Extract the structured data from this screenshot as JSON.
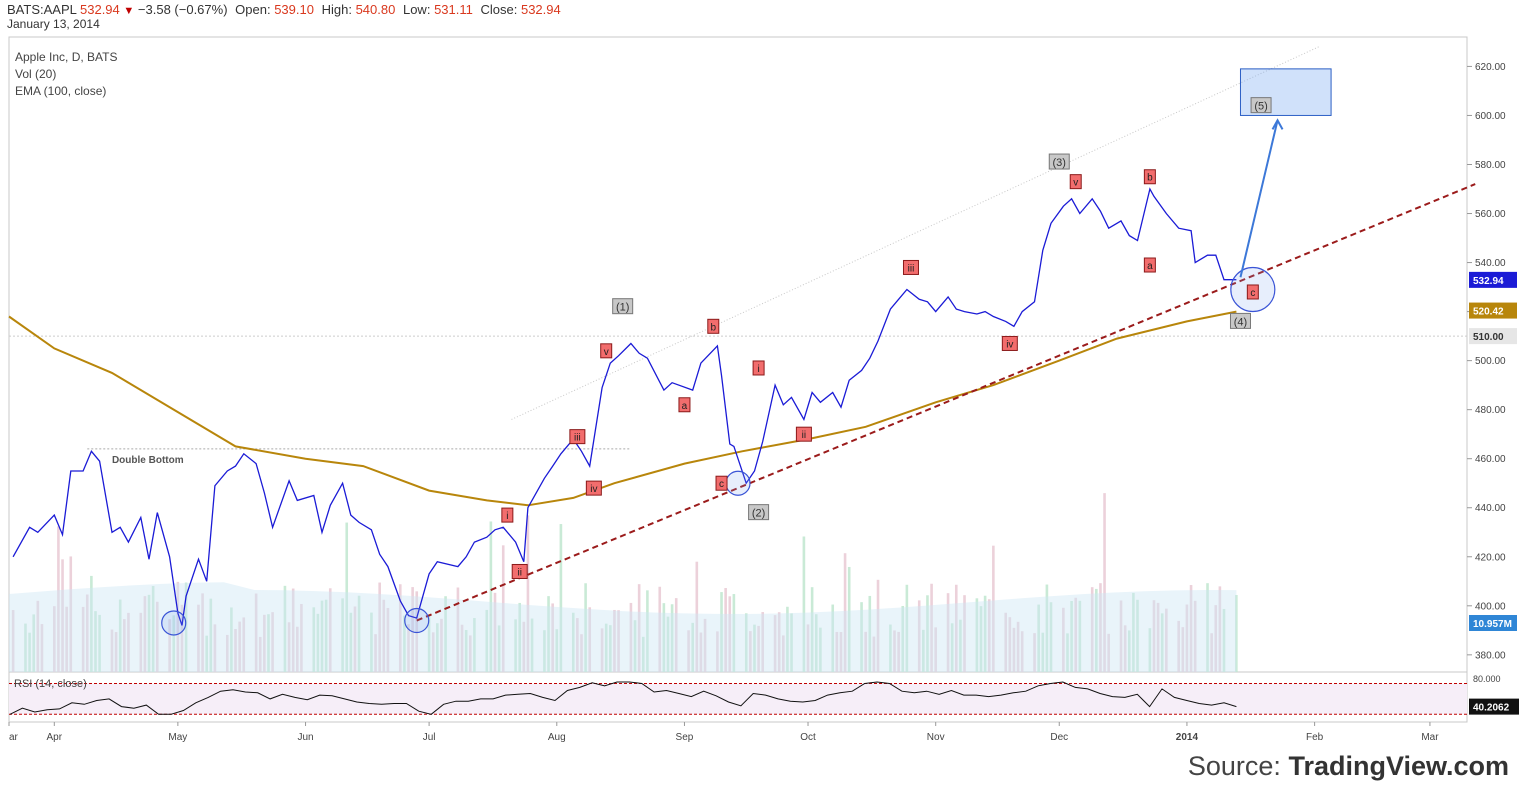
{
  "header": {
    "symbol": "BATS:AAPL",
    "last": "532.94",
    "change": "−3.58 (−0.67%)",
    "open_label": "Open:",
    "open": "539.10",
    "high_label": "High:",
    "high": "540.80",
    "low_label": "Low:",
    "low": "531.11",
    "close_label": "Close:",
    "close": "532.94",
    "date": "January 13, 2014"
  },
  "legend": {
    "title": "Apple Inc, D, BATS",
    "vol": "Vol (20)",
    "ema": "EMA (100, close)"
  },
  "source": {
    "prefix": "Source: ",
    "brand": "TradingView.com"
  },
  "colors": {
    "price": "#1b1bd6",
    "ema": "#b8860b",
    "trend": "#9b1b1b",
    "target": "#3c78d8",
    "vol_up": "#bfe6cf",
    "vol_dn": "#e9c9d3",
    "vol_avg": "#cfe6f5",
    "rsi": "#111111",
    "rsi_band": "#c00000"
  },
  "chart_data": [
    {
      "type": "line",
      "title": "Apple Inc, D, BATS",
      "y_axis": {
        "ticks": [
          "620.00",
          "600.00",
          "580.00",
          "560.00",
          "540.00",
          "520.00",
          "500.00",
          "480.00",
          "460.00",
          "440.00",
          "420.00",
          "400.00",
          "380.00"
        ],
        "values": [
          620,
          600,
          580,
          560,
          540,
          520,
          500,
          480,
          460,
          440,
          420,
          400,
          380
        ],
        "range": [
          373,
          632
        ]
      },
      "x_axis": {
        "labels": [
          "ar",
          "Apr",
          "May",
          "Jun",
          "Jul",
          "Aug",
          "Sep",
          "Oct",
          "Nov",
          "Dec",
          "2014",
          "Feb",
          "Mar"
        ],
        "range": [
          "2013-03-21",
          "2014-03-10"
        ]
      },
      "series": [
        {
          "name": "",
          "color": "#1b1bd6",
          "points": [
            [
              "2013-03-22",
              420
            ],
            [
              "2013-03-26",
              432
            ],
            [
              "2013-03-28",
              430
            ],
            [
              "2013-04-01",
              437
            ],
            [
              "2013-04-03",
              429
            ],
            [
              "2013-04-05",
              455
            ],
            [
              "2013-04-08",
              455
            ],
            [
              "2013-04-10",
              463
            ],
            [
              "2013-04-12",
              459
            ],
            [
              "2013-04-15",
              430
            ],
            [
              "2013-04-17",
              432
            ],
            [
              "2013-04-19",
              426
            ],
            [
              "2013-04-22",
              436
            ],
            [
              "2013-04-24",
              419
            ],
            [
              "2013-04-26",
              438
            ],
            [
              "2013-04-29",
              420
            ],
            [
              "2013-05-01",
              397
            ],
            [
              "2013-05-02",
              392
            ],
            [
              "2013-05-03",
              404
            ],
            [
              "2013-05-06",
              419
            ],
            [
              "2013-05-08",
              410
            ],
            [
              "2013-05-10",
              449
            ],
            [
              "2013-05-13",
              455
            ],
            [
              "2013-05-15",
              457
            ],
            [
              "2013-05-17",
              462
            ],
            [
              "2013-05-20",
              458
            ],
            [
              "2013-05-22",
              446
            ],
            [
              "2013-05-24",
              432
            ],
            [
              "2013-05-28",
              451
            ],
            [
              "2013-05-30",
              443
            ],
            [
              "2013-06-03",
              445
            ],
            [
              "2013-06-05",
              430
            ],
            [
              "2013-06-07",
              441
            ],
            [
              "2013-06-10",
              450
            ],
            [
              "2013-06-12",
              437
            ],
            [
              "2013-06-14",
              434
            ],
            [
              "2013-06-17",
              431
            ],
            [
              "2013-06-19",
              421
            ],
            [
              "2013-06-21",
              416
            ],
            [
              "2013-06-24",
              402
            ],
            [
              "2013-06-26",
              396
            ],
            [
              "2013-06-28",
              395
            ],
            [
              "2013-07-01",
              413
            ],
            [
              "2013-07-03",
              418
            ],
            [
              "2013-07-08",
              416
            ],
            [
              "2013-07-10",
              420
            ],
            [
              "2013-07-12",
              426
            ],
            [
              "2013-07-15",
              428
            ],
            [
              "2013-07-17",
              431
            ],
            [
              "2013-07-19",
              432
            ],
            [
              "2013-07-22",
              426
            ],
            [
              "2013-07-24",
              418
            ],
            [
              "2013-07-25",
              440
            ],
            [
              "2013-07-29",
              452
            ],
            [
              "2013-07-31",
              457
            ],
            [
              "2013-08-02",
              462
            ],
            [
              "2013-08-05",
              468
            ],
            [
              "2013-08-07",
              463
            ],
            [
              "2013-08-09",
              457
            ],
            [
              "2013-08-12",
              489
            ],
            [
              "2013-08-14",
              499
            ],
            [
              "2013-08-16",
              502
            ],
            [
              "2013-08-19",
              507
            ],
            [
              "2013-08-21",
              503
            ],
            [
              "2013-08-23",
              501
            ],
            [
              "2013-08-27",
              488
            ],
            [
              "2013-08-29",
              491
            ],
            [
              "2013-09-03",
              488
            ],
            [
              "2013-09-05",
              499
            ],
            [
              "2013-09-09",
              506
            ],
            [
              "2013-09-10",
              494
            ],
            [
              "2013-09-12",
              466
            ],
            [
              "2013-09-13",
              465
            ],
            [
              "2013-09-16",
              450
            ],
            [
              "2013-09-18",
              455
            ],
            [
              "2013-09-20",
              467
            ],
            [
              "2013-09-23",
              490
            ],
            [
              "2013-09-25",
              482
            ],
            [
              "2013-09-27",
              485
            ],
            [
              "2013-09-30",
              476
            ],
            [
              "2013-10-02",
              487
            ],
            [
              "2013-10-04",
              483
            ],
            [
              "2013-10-07",
              487
            ],
            [
              "2013-10-09",
              481
            ],
            [
              "2013-10-11",
              492
            ],
            [
              "2013-10-14",
              496
            ],
            [
              "2013-10-16",
              501
            ],
            [
              "2013-10-18",
              508
            ],
            [
              "2013-10-21",
              521
            ],
            [
              "2013-10-23",
              525
            ],
            [
              "2013-10-25",
              529
            ],
            [
              "2013-10-28",
              525
            ],
            [
              "2013-10-30",
              524
            ],
            [
              "2013-11-01",
              520
            ],
            [
              "2013-11-04",
              526
            ],
            [
              "2013-11-06",
              521
            ],
            [
              "2013-11-08",
              520
            ],
            [
              "2013-11-11",
              519
            ],
            [
              "2013-11-13",
              520
            ],
            [
              "2013-11-15",
              518
            ],
            [
              "2013-11-18",
              516
            ],
            [
              "2013-11-20",
              514
            ],
            [
              "2013-11-22",
              520
            ],
            [
              "2013-11-25",
              524
            ],
            [
              "2013-11-27",
              545
            ],
            [
              "2013-11-29",
              556
            ],
            [
              "2013-12-02",
              563
            ],
            [
              "2013-12-04",
              566
            ],
            [
              "2013-12-06",
              560
            ],
            [
              "2013-12-09",
              566
            ],
            [
              "2013-12-11",
              561
            ],
            [
              "2013-12-13",
              554
            ],
            [
              "2013-12-16",
              557
            ],
            [
              "2013-12-18",
              551
            ],
            [
              "2013-12-20",
              549
            ],
            [
              "2013-12-23",
              570
            ],
            [
              "2013-12-24",
              567
            ],
            [
              "2013-12-27",
              560
            ],
            [
              "2013-12-30",
              554
            ],
            [
              "2014-01-02",
              553
            ],
            [
              "2014-01-03",
              540
            ],
            [
              "2014-01-06",
              543
            ],
            [
              "2014-01-08",
              543
            ],
            [
              "2014-01-10",
              533
            ],
            [
              "2014-01-13",
              533
            ]
          ]
        },
        {
          "name": "",
          "color": "#b8860b",
          "points": [
            [
              "2013-03-21",
              518
            ],
            [
              "2013-04-01",
              505
            ],
            [
              "2013-04-15",
              495
            ],
            [
              "2013-05-01",
              479
            ],
            [
              "2013-05-15",
              465
            ],
            [
              "2013-06-01",
              460
            ],
            [
              "2013-06-15",
              457
            ],
            [
              "2013-07-01",
              447
            ],
            [
              "2013-07-15",
              443
            ],
            [
              "2013-07-25",
              441
            ],
            [
              "2013-08-05",
              444
            ],
            [
              "2013-08-15",
              450
            ],
            [
              "2013-09-01",
              458
            ],
            [
              "2013-09-15",
              463
            ],
            [
              "2013-10-01",
              468
            ],
            [
              "2013-10-15",
              473
            ],
            [
              "2013-11-01",
              483
            ],
            [
              "2013-11-15",
              490
            ],
            [
              "2013-12-01",
              500
            ],
            [
              "2013-12-15",
              509
            ],
            [
              "2014-01-01",
              516
            ],
            [
              "2014-01-13",
              520
            ]
          ]
        }
      ],
      "last_price_label": "532.94",
      "ema_label": "520.42",
      "ref_line_label": "510.00",
      "ref_line_value": 510,
      "annotations": {
        "double_bottom": "Double Bottom",
        "gray_waves": [
          {
            "text": "(1)",
            "date": "2013-08-17",
            "y": 522
          },
          {
            "text": "(2)",
            "date": "2013-09-19",
            "y": 438
          },
          {
            "text": "(3)",
            "date": "2013-12-01",
            "y": 581
          },
          {
            "text": "(4)",
            "date": "2014-01-14",
            "y": 516
          },
          {
            "text": "(5)",
            "date": "2014-01-19",
            "y": 604
          }
        ],
        "red_waves": [
          {
            "text": "v",
            "date": "2013-08-13",
            "y": 504
          },
          {
            "text": "iii",
            "date": "2013-08-06",
            "y": 469
          },
          {
            "text": "iv",
            "date": "2013-08-10",
            "y": 448
          },
          {
            "text": "i",
            "date": "2013-07-20",
            "y": 437
          },
          {
            "text": "ii",
            "date": "2013-07-23",
            "y": 414
          },
          {
            "text": "b",
            "date": "2013-09-08",
            "y": 514
          },
          {
            "text": "a",
            "date": "2013-09-01",
            "y": 482
          },
          {
            "text": "c",
            "date": "2013-09-10",
            "y": 450
          },
          {
            "text": "i",
            "date": "2013-09-19",
            "y": 497
          },
          {
            "text": "ii",
            "date": "2013-09-30",
            "y": 470
          },
          {
            "text": "iii",
            "date": "2013-10-26",
            "y": 538
          },
          {
            "text": "iv",
            "date": "2013-11-19",
            "y": 507
          },
          {
            "text": "v",
            "date": "2013-12-05",
            "y": 573
          },
          {
            "text": "b",
            "date": "2013-12-23",
            "y": 575
          },
          {
            "text": "a",
            "date": "2013-12-23",
            "y": 539
          },
          {
            "text": "c",
            "date": "2014-01-17",
            "y": 528
          }
        ],
        "circles": [
          {
            "date": "2013-04-30",
            "y": 393
          },
          {
            "date": "2013-06-28",
            "y": 394
          },
          {
            "date": "2013-09-14",
            "y": 450
          },
          {
            "date": "2014-01-17",
            "y": 529
          }
        ]
      }
    },
    {
      "type": "bar",
      "title": "Vol (20)",
      "last_label": "10.957M"
    },
    {
      "type": "line",
      "title": "RSI (14, close)",
      "y_axis": {
        "ticks": [
          "80.000"
        ],
        "values": [
          80
        ]
      },
      "bands": [
        70,
        30
      ],
      "last_label": "40.2062",
      "values": [
        30,
        38,
        33,
        36,
        37,
        45,
        43,
        48,
        50,
        40,
        38,
        42,
        30,
        30,
        35,
        45,
        52,
        60,
        62,
        59,
        58,
        50,
        56,
        52,
        49,
        55,
        54,
        50,
        46,
        44,
        43,
        44,
        44,
        34,
        30,
        43,
        47,
        47,
        50,
        50,
        55,
        56,
        57,
        52,
        48,
        61,
        65,
        71,
        67,
        72,
        72,
        70,
        59,
        61,
        57,
        53,
        60,
        54,
        46,
        41,
        57,
        55,
        50,
        47,
        46,
        48,
        55,
        58,
        60,
        70,
        72,
        70,
        60,
        58,
        60,
        56,
        61,
        55,
        55,
        53,
        55,
        58,
        60,
        67,
        70,
        72,
        65,
        63,
        57,
        53,
        52,
        56,
        40,
        63,
        52,
        48,
        44,
        42,
        45,
        40
      ]
    }
  ]
}
